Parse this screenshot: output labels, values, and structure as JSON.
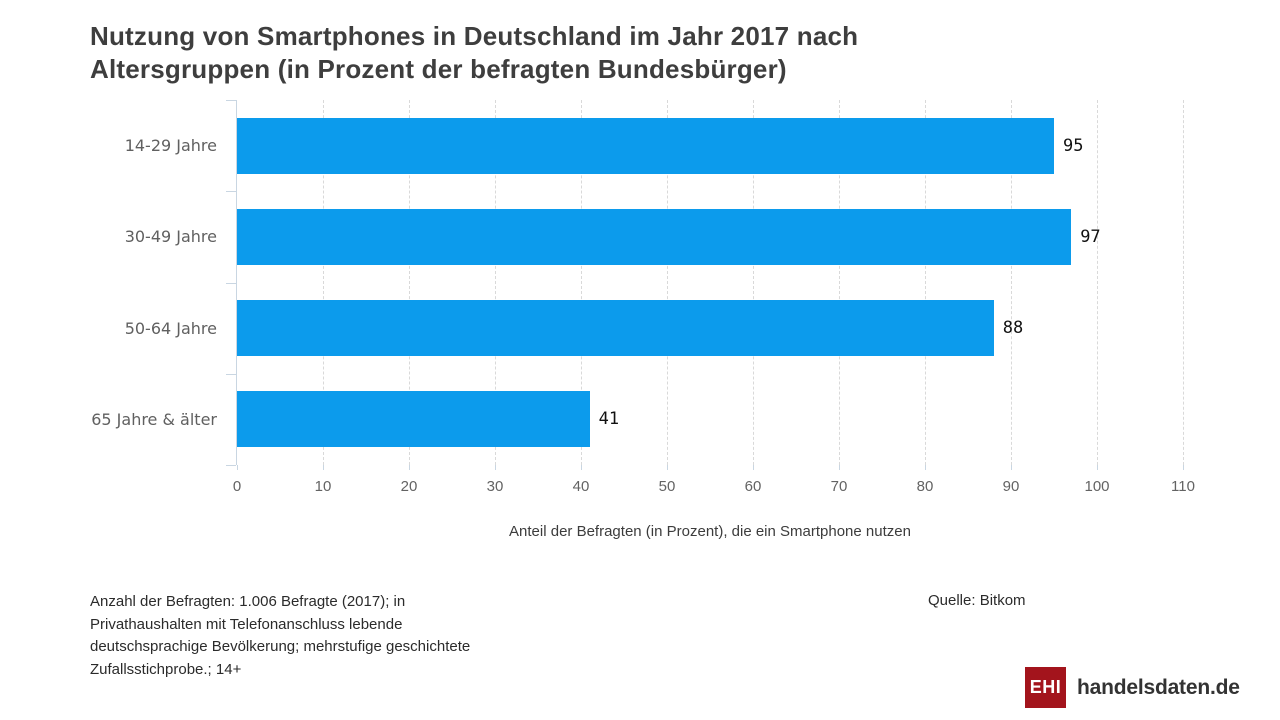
{
  "title": "Nutzung von Smartphones in Deutschland im Jahr 2017 nach Altersgruppen (in Prozent der befragten Bundesbürger)",
  "chart_data": {
    "type": "bar",
    "orientation": "horizontal",
    "categories": [
      "14-29 Jahre",
      "30-49 Jahre",
      "50-64 Jahre",
      "65 Jahre & älter"
    ],
    "values": [
      95,
      97,
      88,
      41
    ],
    "data_labels": [
      "95",
      "97",
      "88",
      "41"
    ],
    "xlabel": "Anteil der Befragten (in Prozent), die ein Smartphone nutzen",
    "xlim": [
      0,
      110
    ],
    "x_ticks": [
      0,
      10,
      20,
      30,
      40,
      50,
      60,
      70,
      80,
      90,
      100,
      110
    ],
    "grid": "vertical-dashed",
    "legend": "none",
    "bar_color": "#0c9bec"
  },
  "footnote_lines": [
    "Anzahl der Befragten: 1.006 Befragte (2017); in",
    "Privathaushalten mit Telefonanschluss lebende",
    "deutschsprachige Bevölkerung; mehrstufige geschichtete",
    "Zufallsstichprobe.; 14+"
  ],
  "source": "Quelle: Bitkom",
  "logo": {
    "badge": "EHI",
    "text": "handelsdaten.de",
    "badge_color": "#a3141c"
  }
}
